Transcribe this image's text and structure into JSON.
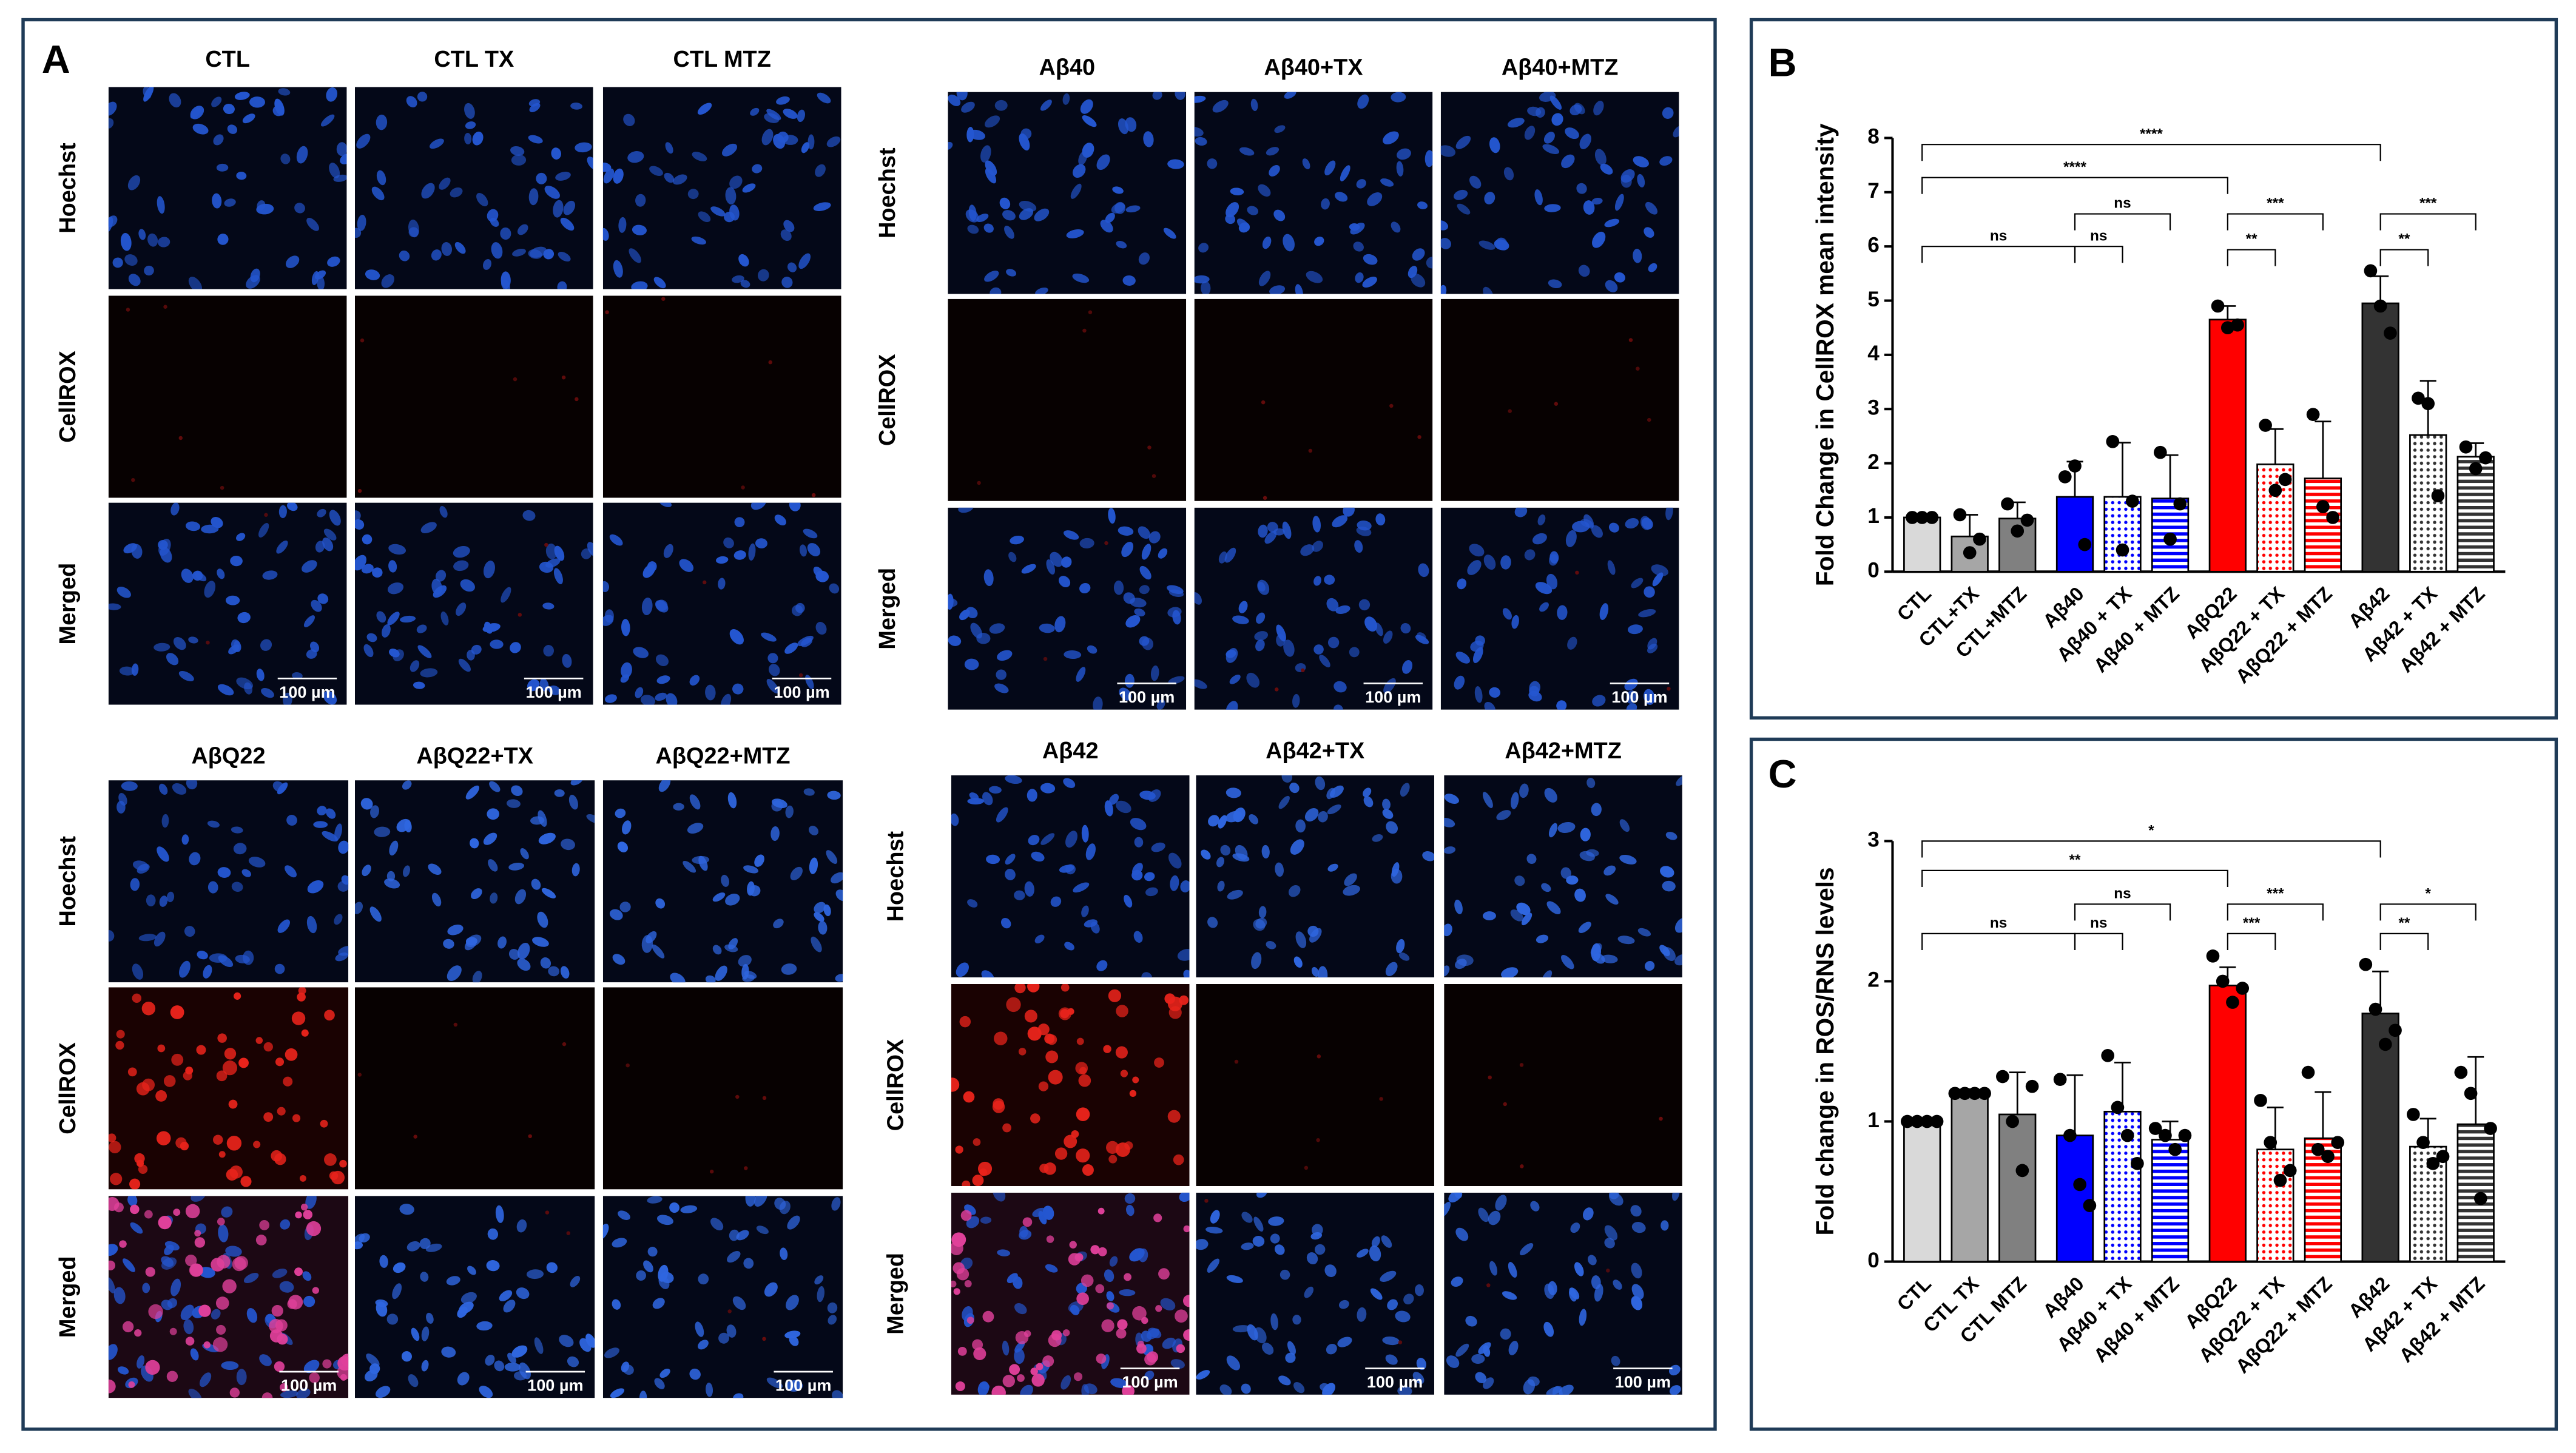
{
  "panel_a": {
    "label": "A",
    "scale_bar": "100 µm",
    "groups": [
      {
        "columns": [
          "CTL",
          "CTL TX",
          "CTL MTZ"
        ],
        "rows": [
          "Hoechst",
          "CellROX",
          "Merged"
        ]
      },
      {
        "columns": [
          "Aβ40",
          "Aβ40+TX",
          "Aβ40+MTZ"
        ],
        "rows": [
          "Hoechst",
          "CellROX",
          "Merged"
        ]
      },
      {
        "columns": [
          "AβQ22",
          "AβQ22+TX",
          "AβQ22+MTZ"
        ],
        "rows": [
          "Hoechst",
          "CellROX",
          "Merged"
        ]
      },
      {
        "columns": [
          "Aβ42",
          "Aβ42+TX",
          "Aβ42+MTZ"
        ],
        "rows": [
          "Hoechst",
          "CellROX",
          "Merged"
        ]
      }
    ]
  },
  "chart_data": [
    {
      "label": "B",
      "type": "bar",
      "ylabel": "Fold Change in CellROX mean intensity",
      "categories": [
        "CTL",
        "CTL+TX",
        "CTL+MTZ",
        "Aβ40",
        "Aβ40 + TX",
        "Aβ40 + MTZ",
        "AβQ22",
        "AβQ22 + TX",
        "AβQ22 + MTZ",
        "Aβ42",
        "Aβ42 + TX",
        "Aβ42 + MTZ"
      ],
      "values": [
        1.0,
        0.65,
        0.98,
        1.38,
        1.38,
        1.35,
        4.65,
        1.98,
        1.72,
        4.95,
        2.52,
        2.12
      ],
      "errors": [
        0.02,
        0.4,
        0.3,
        0.65,
        1.0,
        0.8,
        0.25,
        0.65,
        1.05,
        0.5,
        1.0,
        0.25
      ],
      "points": [
        [
          1.0,
          1.0,
          1.0
        ],
        [
          1.05,
          0.35,
          0.6
        ],
        [
          1.25,
          0.75,
          0.95
        ],
        [
          1.75,
          1.95,
          0.5
        ],
        [
          2.4,
          0.4,
          1.3
        ],
        [
          2.2,
          0.6,
          1.25
        ],
        [
          4.9,
          4.5,
          4.55
        ],
        [
          2.7,
          1.5,
          1.7
        ],
        [
          2.9,
          1.2,
          1.0
        ],
        [
          5.55,
          4.9,
          4.4
        ],
        [
          3.2,
          3.1,
          1.4
        ],
        [
          2.3,
          1.9,
          2.1
        ]
      ],
      "colors": [
        "#d9d9d9",
        "#a6a6a6",
        "#808080",
        "#0000ff",
        "#0000ff",
        "#0000ff",
        "#ff0000",
        "#ff0000",
        "#ff0000",
        "#333333",
        "#333333",
        "#333333"
      ],
      "patterns": [
        "solid",
        "solid",
        "solid",
        "solid",
        "dots",
        "stripes",
        "solid",
        "dots",
        "stripes",
        "solid",
        "dots",
        "stripes"
      ],
      "ylim": [
        0,
        8
      ],
      "yticks": [
        0,
        1,
        2,
        3,
        4,
        5,
        6,
        7,
        8
      ],
      "annotations": [
        {
          "from": "CTL",
          "to": "Aβ40",
          "y": 6.0,
          "text": "ns"
        },
        {
          "from": "Aβ40",
          "to": "Aβ40 + TX",
          "y": 6.0,
          "text": "ns"
        },
        {
          "from": "Aβ40",
          "to": "Aβ40 + MTZ",
          "y": 6.6,
          "text": "ns"
        },
        {
          "from": "CTL",
          "to": "AβQ22",
          "y": 7.27,
          "text": "****"
        },
        {
          "from": "CTL",
          "to": "Aβ42",
          "y": 7.88,
          "text": "****"
        },
        {
          "from": "AβQ22",
          "to": "AβQ22 + TX",
          "y": 5.94,
          "text": "**"
        },
        {
          "from": "AβQ22",
          "to": "AβQ22 + MTZ",
          "y": 6.6,
          "text": "***"
        },
        {
          "from": "Aβ42",
          "to": "Aβ42 + TX",
          "y": 5.94,
          "text": "**"
        },
        {
          "from": "Aβ42",
          "to": "Aβ42 + MTZ",
          "y": 6.6,
          "text": "***"
        }
      ]
    },
    {
      "label": "C",
      "type": "bar",
      "ylabel": "Fold change in ROS/RNS levels",
      "categories": [
        "CTL",
        "CTL TX",
        "CTL MTZ",
        "Aβ40",
        "Aβ40 + TX",
        "Aβ40 + MTZ",
        "AβQ22",
        "AβQ22 + TX",
        "AβQ22 + MTZ",
        "Aβ42",
        "Aβ42 + TX",
        "Aβ42 + MTZ"
      ],
      "values": [
        1.0,
        1.2,
        1.05,
        0.9,
        1.07,
        0.87,
        1.97,
        0.8,
        0.88,
        1.77,
        0.82,
        0.98
      ],
      "errors": [
        0.02,
        0.03,
        0.3,
        0.43,
        0.35,
        0.13,
        0.13,
        0.3,
        0.33,
        0.3,
        0.2,
        0.48
      ],
      "points": [
        [
          1.0,
          1.0,
          1.0,
          1.0
        ],
        [
          1.2,
          1.2,
          1.2,
          1.2
        ],
        [
          1.32,
          1.0,
          0.65,
          1.25
        ],
        [
          1.3,
          0.9,
          0.55,
          0.4
        ],
        [
          1.47,
          1.1,
          0.9,
          0.7
        ],
        [
          0.95,
          0.9,
          0.8,
          0.9
        ],
        [
          2.18,
          2.0,
          1.85,
          1.95
        ],
        [
          1.15,
          0.85,
          0.58,
          0.65
        ],
        [
          1.35,
          0.8,
          0.75,
          0.85
        ],
        [
          2.12,
          1.8,
          1.55,
          1.65
        ],
        [
          1.05,
          0.85,
          0.7,
          0.75
        ],
        [
          1.35,
          1.2,
          0.45,
          0.95
        ]
      ],
      "colors": [
        "#d9d9d9",
        "#a6a6a6",
        "#808080",
        "#0000ff",
        "#0000ff",
        "#0000ff",
        "#ff0000",
        "#ff0000",
        "#ff0000",
        "#333333",
        "#333333",
        "#333333"
      ],
      "patterns": [
        "solid",
        "solid",
        "solid",
        "solid",
        "dots",
        "stripes",
        "solid",
        "dots",
        "stripes",
        "solid",
        "dots",
        "stripes"
      ],
      "ylim": [
        0,
        3
      ],
      "yticks": [
        0,
        1,
        2,
        3
      ],
      "annotations": [
        {
          "from": "CTL",
          "to": "Aβ40",
          "y": 2.34,
          "text": "ns"
        },
        {
          "from": "Aβ40",
          "to": "Aβ40 + TX",
          "y": 2.34,
          "text": "ns"
        },
        {
          "from": "Aβ40",
          "to": "Aβ40 + MTZ",
          "y": 2.55,
          "text": "ns"
        },
        {
          "from": "CTL",
          "to": "AβQ22",
          "y": 2.79,
          "text": "**"
        },
        {
          "from": "CTL",
          "to": "Aβ42",
          "y": 3.0,
          "text": "*"
        },
        {
          "from": "AβQ22",
          "to": "AβQ22 + TX",
          "y": 2.34,
          "text": "***"
        },
        {
          "from": "AβQ22",
          "to": "AβQ22 + MTZ",
          "y": 2.55,
          "text": "***"
        },
        {
          "from": "Aβ42",
          "to": "Aβ42 + TX",
          "y": 2.34,
          "text": "**"
        },
        {
          "from": "Aβ42",
          "to": "Aβ42 + MTZ",
          "y": 2.55,
          "text": "*"
        }
      ]
    }
  ]
}
